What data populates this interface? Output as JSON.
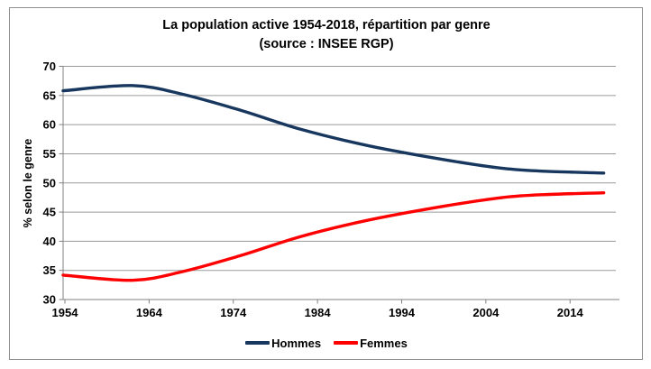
{
  "chart_data": {
    "type": "line",
    "title": "La population active 1954-2018, répartition par genre",
    "subtitle": "(source : INSEE RGP)",
    "xlabel": "",
    "ylabel": "% selon le genre",
    "x": [
      1954,
      1962,
      1968,
      1975,
      1982,
      1990,
      1999,
      2006,
      2011,
      2018
    ],
    "series": [
      {
        "name": "Hommes",
        "color": "#17375E",
        "values": [
          65.8,
          66.7,
          65.2,
          62.4,
          59.2,
          56.4,
          54.0,
          52.5,
          52.0,
          51.7
        ]
      },
      {
        "name": "Femmes",
        "color": "#FE0000",
        "values": [
          34.2,
          33.3,
          34.8,
          37.6,
          40.8,
          43.6,
          46.0,
          47.5,
          48.0,
          48.3
        ]
      }
    ],
    "xlim": [
      1954,
      2018
    ],
    "ylim": [
      30,
      70
    ],
    "x_ticks": [
      1954,
      1964,
      1974,
      1984,
      1994,
      2004,
      2014
    ],
    "y_ticks": [
      30,
      35,
      40,
      45,
      50,
      55,
      60,
      65,
      70
    ],
    "grid": "horizontal-only",
    "legend_position": "bottom",
    "line_style": "smoothed",
    "grid_color": "#9a9a9a",
    "axis_color": "#808080",
    "text_color": "#000000"
  }
}
